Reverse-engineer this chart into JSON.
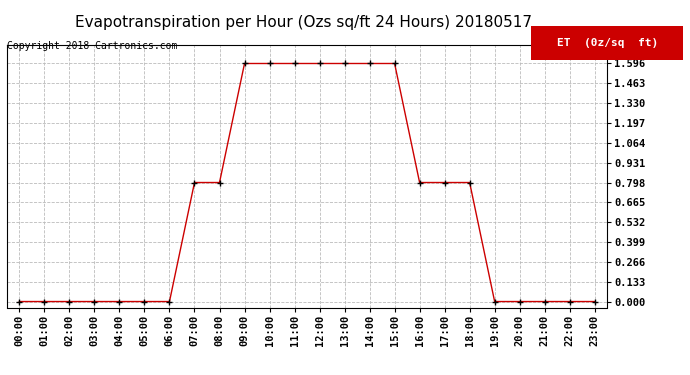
{
  "title": "Evapotranspiration per Hour (Ozs sq/ft 24 Hours) 20180517",
  "copyright": "Copyright 2018 Cartronics.com",
  "legend_label": "ET  (0z/sq  ft)",
  "legend_bg": "#cc0000",
  "legend_fg": "#ffffff",
  "line_color": "#cc0000",
  "marker_color": "#000000",
  "hours": [
    "00:00",
    "01:00",
    "02:00",
    "03:00",
    "04:00",
    "05:00",
    "06:00",
    "07:00",
    "08:00",
    "09:00",
    "10:00",
    "11:00",
    "12:00",
    "13:00",
    "14:00",
    "15:00",
    "16:00",
    "17:00",
    "18:00",
    "19:00",
    "20:00",
    "21:00",
    "22:00",
    "23:00"
  ],
  "values": [
    0.0,
    0.0,
    0.0,
    0.0,
    0.0,
    0.0,
    0.0,
    0.798,
    0.798,
    1.596,
    1.596,
    1.596,
    1.596,
    1.596,
    1.596,
    1.596,
    0.798,
    0.798,
    0.798,
    0.0,
    0.0,
    0.0,
    0.0,
    0.0
  ],
  "yticks": [
    0.0,
    0.133,
    0.266,
    0.399,
    0.532,
    0.665,
    0.798,
    0.931,
    1.064,
    1.197,
    1.33,
    1.463,
    1.596
  ],
  "ylim": [
    -0.04,
    1.72
  ],
  "bg_color": "#ffffff",
  "grid_color": "#bbbbbb",
  "title_fontsize": 11,
  "copyright_fontsize": 7,
  "tick_fontsize": 7.5,
  "legend_fontsize": 8
}
